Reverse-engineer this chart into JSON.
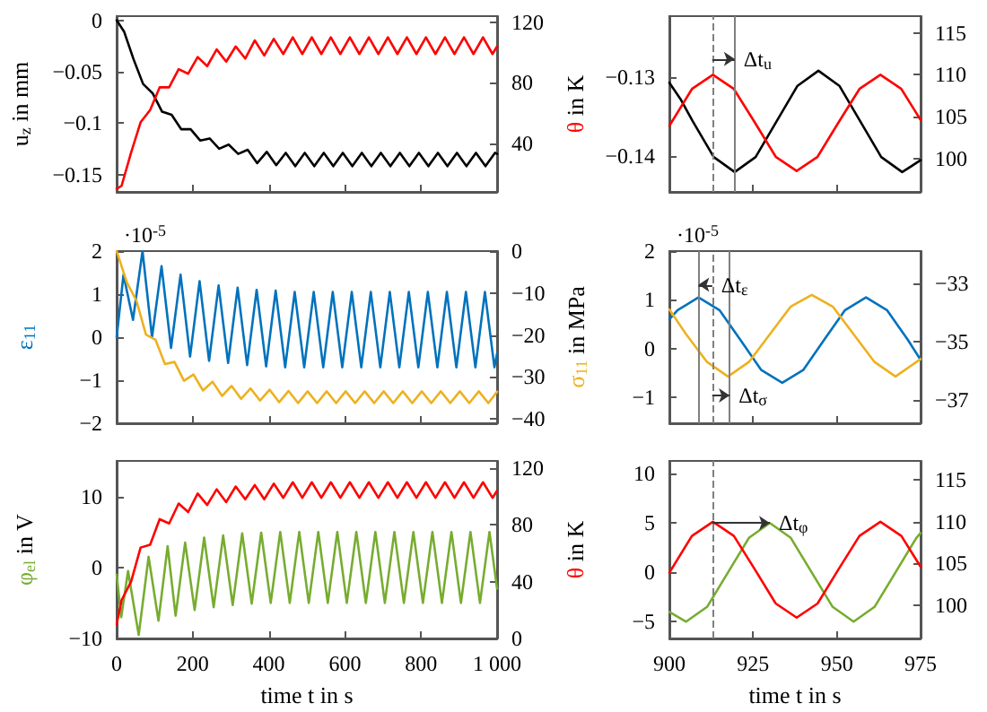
{
  "chart_data": [
    {
      "type": "line",
      "ylabel": "u$_{z}$ in mm",
      "y2label": "θ in K",
      "xlim": [
        0,
        1000
      ],
      "xticks": [
        0,
        200,
        400,
        600,
        800,
        1000
      ],
      "ylim": [
        -0.167,
        0.004
      ],
      "yticks": [
        -0.15,
        -0.1,
        -0.05,
        0
      ],
      "y2lim": [
        8,
        124
      ],
      "y2ticks": [
        40,
        80,
        120
      ],
      "tick_labels": "y",
      "series": [
        {
          "color": "#000000",
          "x": [
            0,
            19.5,
            44.5,
            69.5,
            94.5,
            119.5,
            144.5,
            169.5,
            194.5,
            219.5,
            244.5,
            269.5,
            294.5,
            319.5,
            344.5,
            369.5,
            394.5,
            419.5,
            444.5,
            469.5,
            494.5,
            519.5,
            544.5,
            569.5,
            594.5,
            619.5,
            644.5,
            669.5,
            694.5,
            719.5,
            744.5,
            769.5,
            794.5,
            819.5,
            844.5,
            869.5,
            894.5,
            919.5,
            944.5,
            969.5,
            994.5,
            1000
          ],
          "values": [
            0,
            -0.011,
            -0.038,
            -0.062,
            -0.071,
            -0.089,
            -0.092,
            -0.106,
            -0.106,
            -0.117,
            -0.115,
            -0.125,
            -0.121,
            -0.13,
            -0.126,
            -0.139,
            -0.128,
            -0.141,
            -0.129,
            -0.142,
            -0.129,
            -0.142,
            -0.129,
            -0.142,
            -0.129,
            -0.142,
            -0.129,
            -0.142,
            -0.129,
            -0.142,
            -0.129,
            -0.142,
            -0.129,
            -0.142,
            -0.129,
            -0.142,
            -0.129,
            -0.142,
            -0.129,
            -0.142,
            -0.129,
            -0.13
          ]
        },
        {
          "color": "#ff0000",
          "axis": "y2",
          "x": [
            0,
            13,
            38,
            63,
            88,
            113,
            138,
            163,
            188,
            213,
            238,
            263,
            288,
            313,
            338,
            363,
            388,
            413,
            438,
            463,
            488,
            513,
            538,
            563,
            588,
            613,
            638,
            663,
            688,
            713,
            738,
            763,
            788,
            813,
            838,
            863,
            888,
            913,
            938,
            963,
            988,
            1000
          ],
          "values": [
            10,
            12,
            34,
            54,
            62,
            77,
            77,
            89,
            86,
            97,
            91,
            102,
            94,
            104,
            96,
            108,
            98,
            109,
            99,
            110,
            99,
            110,
            99,
            110,
            99,
            110,
            99,
            110,
            99,
            110,
            99,
            110,
            99,
            110,
            99,
            110,
            99,
            110,
            99,
            110,
            99,
            104
          ]
        }
      ]
    },
    {
      "type": "line",
      "xlim": [
        900,
        975
      ],
      "xticks": [
        900,
        925,
        950,
        975
      ],
      "ylim": [
        -0.1445,
        -0.1223
      ],
      "yticks": [
        -0.14,
        -0.13
      ],
      "y2lim": [
        96,
        117
      ],
      "y2ticks": [
        100,
        105,
        110,
        115
      ],
      "tick_labels": "y",
      "annotations": [
        {
          "text": "Δt$_{u}$",
          "x": 919.5,
          "y": -0.1277
        }
      ],
      "ref_lines": [
        {
          "axis": "x",
          "value": 912.8,
          "color": "#808080",
          "line_style": "dashed"
        },
        {
          "axis": "x",
          "value": 919.5,
          "color": "#808080",
          "line_style": "solid"
        }
      ],
      "series": [
        {
          "color": "#000000",
          "x": [
            900,
            903.5,
            907,
            913.25,
            919.5,
            925.75,
            932,
            938.25,
            944.5,
            950.75,
            957,
            963.25,
            969.5,
            975
          ],
          "values": [
            -0.1307,
            -0.1329,
            -0.1356,
            -0.1401,
            -0.142,
            -0.1401,
            -0.1356,
            -0.1311,
            -0.1292,
            -0.1311,
            -0.1356,
            -0.1401,
            -0.142,
            -0.1405
          ]
        },
        {
          "color": "#ff0000",
          "axis": "y2",
          "x": [
            900,
            906.75,
            913,
            919.25,
            925.5,
            931.75,
            938,
            944.25,
            950.5,
            956.75,
            963,
            969.25,
            975
          ],
          "values": [
            103.9,
            108.3,
            110,
            108.3,
            104.3,
            100.2,
            98.5,
            100.2,
            104.3,
            108.3,
            110,
            108.3,
            104.6
          ]
        }
      ]
    },
    {
      "type": "line",
      "ylabel": "ε$_{11}$",
      "y2label": "σ$_{11}$ in MPa",
      "xlim": [
        0,
        1000
      ],
      "xticks": [
        0,
        200,
        400,
        600,
        800,
        1000
      ],
      "ylim": [
        -2,
        2
      ],
      "yticks": [
        -2,
        -1,
        0,
        1,
        2
      ],
      "y2lim": [
        -41,
        0
      ],
      "y2ticks": [
        -40,
        -30,
        -20,
        -10,
        0
      ],
      "tick_labels": "y",
      "annotations": [
        "·10$^{-5}$"
      ],
      "series": [
        {
          "color": "#0072bd",
          "x": [
            0,
            18,
            43,
            68,
            93,
            118,
            143,
            168,
            193,
            218,
            243,
            268,
            293,
            318,
            343,
            368,
            393,
            418,
            443,
            468,
            493,
            518,
            543,
            568,
            593,
            618,
            643,
            668,
            693,
            718,
            743,
            768,
            793,
            818,
            843,
            868,
            893,
            918,
            943,
            968,
            993,
            1000
          ],
          "values": [
            0,
            1.45,
            0.4,
            2,
            0,
            1.65,
            -0.25,
            1.45,
            -0.45,
            1.3,
            -0.55,
            1.2,
            -0.6,
            1.15,
            -0.65,
            1.1,
            -0.68,
            1.08,
            -0.7,
            1.05,
            -0.7,
            1.05,
            -0.7,
            1.05,
            -0.7,
            1.05,
            -0.7,
            1.05,
            -0.7,
            1.05,
            -0.7,
            1.05,
            -0.7,
            1.05,
            -0.7,
            1.05,
            -0.7,
            1.05,
            -0.7,
            1.05,
            -0.7,
            -0.38
          ]
        },
        {
          "color": "#edb120",
          "axis": "y2",
          "x": [
            0,
            27,
            52,
            77,
            102,
            127,
            152,
            177,
            202,
            227,
            252,
            277,
            302,
            327,
            352,
            377,
            402,
            427,
            452,
            477,
            502,
            527,
            552,
            577,
            602,
            627,
            652,
            677,
            702,
            727,
            752,
            777,
            802,
            827,
            852,
            877,
            902,
            927,
            952,
            977,
            1000
          ],
          "values": [
            0,
            -7.5,
            -11.8,
            -19.9,
            -21.1,
            -26.9,
            -26.4,
            -30.9,
            -29.4,
            -33.2,
            -31.1,
            -34.5,
            -32.1,
            -35.2,
            -32.7,
            -35.6,
            -33,
            -36,
            -33.3,
            -36.2,
            -33.4,
            -36.2,
            -33.4,
            -36.2,
            -33.4,
            -36.2,
            -33.4,
            -36.2,
            -33.4,
            -36.2,
            -33.4,
            -36.2,
            -33.4,
            -36.2,
            -33.4,
            -36.2,
            -33.4,
            -36.2,
            -33.4,
            -36.2,
            -33.5
          ]
        }
      ]
    },
    {
      "type": "line",
      "xlim": [
        900,
        975
      ],
      "xticks": [
        900,
        925,
        950,
        975
      ],
      "ylim": [
        -1.53,
        2
      ],
      "yticks": [
        -1,
        0,
        1,
        2
      ],
      "y2lim": [
        -37.8,
        -31.9
      ],
      "y2ticks": [
        -37,
        -35,
        -33
      ],
      "tick_labels": "y",
      "annotations": [
        "·10$^{-5}$",
        {
          "text": "Δt$_{ε}$",
          "x": 908.7,
          "y": 1.31
        },
        {
          "text": "Δt$_{σ}$",
          "x": 918,
          "y": -0.96
        }
      ],
      "ref_lines": [
        {
          "axis": "x",
          "value": 912.8,
          "color": "#808080",
          "line_style": "dashed"
        },
        {
          "axis": "x",
          "value": 908.7,
          "color": "#808080",
          "line_style": "solid"
        },
        {
          "axis": "x",
          "value": 918,
          "color": "#808080",
          "line_style": "solid"
        }
      ],
      "series": [
        {
          "color": "#0072bd",
          "x": [
            900,
            902.45,
            908.7,
            914.95,
            921.2,
            927.45,
            933.7,
            939.95,
            946.2,
            952.45,
            958.7,
            964.95,
            971.2,
            975
          ],
          "values": [
            0.6,
            0.79,
            1.05,
            0.79,
            0.18,
            -0.44,
            -0.7,
            -0.44,
            0.18,
            0.79,
            1.05,
            0.79,
            0.18,
            -0.23
          ]
        },
        {
          "color": "#edb120",
          "axis": "y2",
          "x": [
            900,
            905,
            911.25,
            917.5,
            923.75,
            930,
            936.25,
            942.5,
            948.75,
            955,
            961.25,
            967.5,
            975
          ],
          "values": [
            -33.9,
            -34.75,
            -35.7,
            -36.2,
            -35.7,
            -34.75,
            -33.8,
            -33.4,
            -33.8,
            -34.75,
            -35.7,
            -36.2,
            -35.6
          ]
        }
      ]
    },
    {
      "type": "line",
      "ylabel": "φ$_{el}$ in V",
      "y2label": "θ in K",
      "xlabel": "time t in s",
      "xlim": [
        0,
        1000
      ],
      "xticks": [
        0,
        200,
        400,
        600,
        800,
        {
          "value": 1000,
          "label": "1 000"
        }
      ],
      "ylim": [
        -10,
        15
      ],
      "yticks": [
        -10,
        0,
        10
      ],
      "y2lim": [
        0,
        125
      ],
      "y2ticks": [
        0,
        40,
        80,
        120
      ],
      "series": [
        {
          "color": "#77ac30",
          "x": [
            0,
            12,
            30,
            58,
            84,
            110,
            134,
            155,
            180,
            205,
            230,
            255,
            280,
            305,
            330,
            355,
            380,
            405,
            430,
            455,
            480,
            505,
            530,
            555,
            580,
            605,
            630,
            655,
            680,
            705,
            730,
            755,
            780,
            805,
            830,
            855,
            880,
            905,
            930,
            955,
            980,
            1000
          ],
          "values": [
            -1,
            -7,
            -0.5,
            -9.5,
            1.5,
            -7.5,
            3,
            -6.8,
            3.5,
            -6,
            4.2,
            -5.6,
            4.5,
            -5.3,
            4.8,
            -5.1,
            4.9,
            -5,
            5,
            -5,
            5,
            -5,
            5,
            -5,
            5,
            -5,
            5,
            -5,
            5,
            -5,
            5,
            -5,
            5,
            -5,
            5,
            -5,
            5,
            -5,
            5,
            -5,
            5,
            -3
          ]
        },
        {
          "color": "#ff0000",
          "axis": "y2",
          "x": [
            0,
            13,
            38,
            63,
            88,
            113,
            138,
            163,
            188,
            213,
            238,
            263,
            288,
            313,
            338,
            363,
            388,
            413,
            438,
            463,
            488,
            513,
            538,
            563,
            588,
            613,
            638,
            663,
            688,
            713,
            738,
            763,
            788,
            813,
            838,
            863,
            888,
            913,
            938,
            963,
            988,
            1000
          ],
          "values": [
            10,
            27,
            40,
            64,
            66,
            84,
            81,
            95,
            89,
            102,
            94,
            105,
            96,
            107,
            98,
            108,
            98,
            109,
            99,
            110,
            99,
            110,
            99,
            110,
            99,
            110,
            99,
            110,
            99,
            110,
            99,
            110,
            99,
            110,
            99,
            110,
            99,
            110,
            99,
            110,
            99,
            104
          ]
        }
      ]
    },
    {
      "type": "line",
      "xlabel": "time t in s",
      "xlim": [
        900,
        975
      ],
      "xticks": [
        900,
        925,
        950,
        975
      ],
      "ylim": [
        -6.7,
        11.3
      ],
      "yticks": [
        -5,
        0,
        5,
        10
      ],
      "y2lim": [
        96,
        117.3
      ],
      "y2ticks": [
        100,
        105,
        110,
        115
      ],
      "annotations": [
        {
          "text": "Δt$_{φ}$",
          "x": 930,
          "y": 5
        }
      ],
      "ref_lines": [
        {
          "axis": "x",
          "value": 912.8,
          "color": "#808080",
          "line_style": "dashed"
        }
      ],
      "series": [
        {
          "color": "#77ac30",
          "x": [
            900,
            905,
            911.25,
            917.5,
            923.75,
            930,
            936.25,
            942.5,
            948.75,
            955,
            961.25,
            967.5,
            973.75,
            975
          ],
          "values": [
            -4,
            -5,
            -3.5,
            0,
            3.5,
            5,
            3.5,
            0,
            -3.5,
            -5,
            -3.5,
            0,
            3.5,
            4
          ]
        },
        {
          "color": "#ff0000",
          "axis": "y2",
          "x": [
            900,
            906.75,
            913,
            919.25,
            925.5,
            931.75,
            938,
            944.25,
            950.5,
            956.75,
            963,
            969.25,
            975
          ],
          "values": [
            103.9,
            108.3,
            110,
            108.3,
            104.3,
            100.2,
            98.5,
            100.2,
            104.3,
            108.3,
            110,
            108.3,
            104.6
          ]
        }
      ]
    }
  ]
}
